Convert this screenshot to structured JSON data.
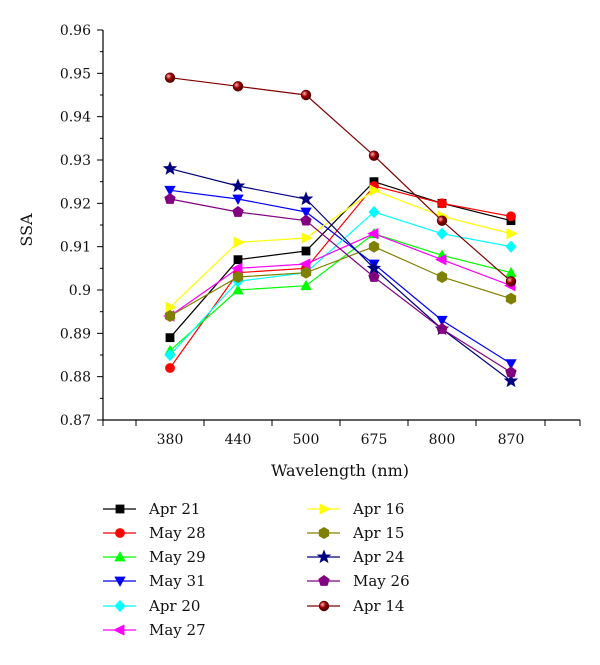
{
  "chart_data": {
    "type": "line",
    "title": "",
    "xlabel": "Wavelength (nm)",
    "ylabel": "SSA",
    "categories": [
      "380",
      "440",
      "500",
      "675",
      "800",
      "870"
    ],
    "y_ticks": [
      "0.87",
      "0.88",
      "0.89",
      "0.9",
      "0.91",
      "0.92",
      "0.93",
      "0.94",
      "0.95",
      "0.96"
    ],
    "ylim": [
      0.87,
      0.96
    ],
    "grid": false,
    "legend_placement": "bottom",
    "series": [
      {
        "name": "Apr 21",
        "color": "#000000",
        "marker": "square",
        "values": [
          0.889,
          0.907,
          0.909,
          0.925,
          0.92,
          0.916
        ]
      },
      {
        "name": "May 28",
        "color": "#ff0000",
        "marker": "circle",
        "values": [
          0.882,
          0.904,
          0.905,
          0.924,
          0.92,
          0.917
        ]
      },
      {
        "name": "May 29",
        "color": "#00ff00",
        "marker": "triangle-up",
        "values": [
          0.886,
          0.9,
          0.901,
          0.913,
          0.908,
          0.904
        ]
      },
      {
        "name": "May 31",
        "color": "#0000ff",
        "marker": "triangle-down",
        "values": [
          0.923,
          0.921,
          0.918,
          0.906,
          0.893,
          0.883
        ]
      },
      {
        "name": "Apr 20",
        "color": "#00ffff",
        "marker": "diamond",
        "values": [
          0.885,
          0.902,
          0.904,
          0.918,
          0.913,
          0.91
        ]
      },
      {
        "name": "May 27",
        "color": "#ff00ff",
        "marker": "triangle-left",
        "values": [
          0.894,
          0.905,
          0.906,
          0.913,
          0.907,
          0.901
        ]
      },
      {
        "name": "Apr 16",
        "color": "#ffff00",
        "marker": "triangle-right",
        "values": [
          0.896,
          0.911,
          0.912,
          0.923,
          0.917,
          0.913
        ]
      },
      {
        "name": "Apr 15",
        "color": "#808000",
        "marker": "hexagon",
        "values": [
          0.894,
          0.903,
          0.904,
          0.91,
          0.903,
          0.898
        ]
      },
      {
        "name": "Apr 24",
        "color": "#000080",
        "marker": "star",
        "values": [
          0.928,
          0.924,
          0.921,
          0.905,
          0.891,
          0.879
        ]
      },
      {
        "name": "May 26",
        "color": "#800080",
        "marker": "pentagon",
        "values": [
          0.921,
          0.918,
          0.916,
          0.903,
          0.891,
          0.881
        ]
      },
      {
        "name": "Apr 14",
        "color": "#800000",
        "marker": "sphere",
        "values": [
          0.949,
          0.947,
          0.945,
          0.931,
          0.916,
          0.902
        ]
      }
    ]
  }
}
